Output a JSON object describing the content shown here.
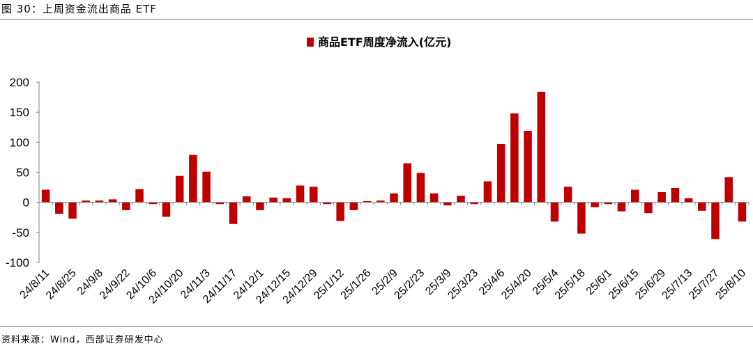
{
  "figure": {
    "title": "图 30：上周资金流出商品 ETF",
    "source": "资料来源：Wind，西部证券研发中心"
  },
  "colors": {
    "bar": "#c00000",
    "axis": "#7f7f7f",
    "rule": "#6b6b6b"
  },
  "chart_data": {
    "type": "bar",
    "legend": "商品ETF周度净流入(亿元)",
    "legend_position": "top-center",
    "grid": false,
    "ylim": [
      -100,
      200
    ],
    "yticks": [
      -100,
      -50,
      0,
      50,
      100,
      150,
      200
    ],
    "xtick_labels": [
      "24/8/11",
      "24/8/25",
      "24/9/8",
      "24/9/22",
      "24/10/6",
      "24/10/20",
      "24/11/3",
      "24/11/17",
      "24/12/1",
      "24/12/15",
      "24/12/29",
      "25/1/12",
      "25/1/26",
      "25/2/9",
      "25/2/23",
      "25/3/9",
      "25/3/23",
      "25/4/6",
      "25/4/20",
      "25/5/4",
      "25/5/18",
      "25/6/1",
      "25/6/15",
      "25/6/29",
      "25/7/13",
      "25/7/27",
      "25/8/10"
    ],
    "series": [
      {
        "name": "商品ETF周度净流入(亿元)",
        "values": [
          21,
          -19,
          -27,
          3,
          3,
          5,
          -13,
          22,
          -3,
          -24,
          44,
          79,
          51,
          -3,
          -36,
          10,
          -13,
          8,
          7,
          28,
          26,
          -3,
          -31,
          -13,
          2,
          3,
          15,
          65,
          49,
          15,
          -5,
          11,
          -3,
          35,
          97,
          148,
          119,
          184,
          -32,
          26,
          -52,
          -8,
          -3,
          -15,
          21,
          -18,
          17,
          24,
          7,
          -14,
          -61,
          42,
          -32
        ]
      }
    ]
  }
}
